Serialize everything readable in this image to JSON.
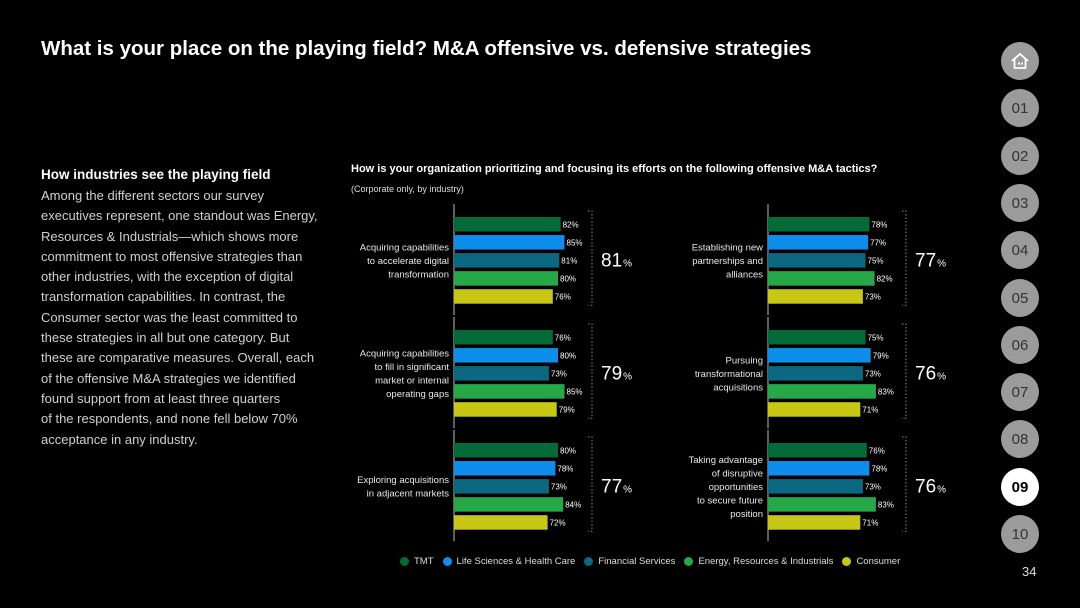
{
  "title": "What is your place on the playing field? M&A offensive vs. defensive strategies",
  "left": {
    "heading": "How industries see the playing field",
    "lines": [
      "Among the different sectors our survey",
      "executives represent, one standout was Energy,",
      "Resources & Industrials—which shows more",
      "commitment to most offensive strategies than",
      "other industries, with the exception of digital",
      "transformation capabilities. In contrast, the",
      "Consumer sector was the least committed to",
      "these strategies in all but one category. But",
      "these are comparative measures. Overall, each",
      "of the offensive M&A strategies we identified",
      "found support from at least three quarters",
      "of the respondents, and none fell below 70%",
      "acceptance in any industry."
    ]
  },
  "nav": {
    "home_icon": "house-icon",
    "items": [
      "01",
      "02",
      "03",
      "04",
      "05",
      "06",
      "07",
      "08",
      "09",
      "10"
    ],
    "active": "09"
  },
  "page_number": "34",
  "colors": {
    "TMT": "#046a38",
    "Life Sciences & Health Care": "#0d8eea",
    "Financial Services": "#0b6880",
    "Energy, Resources & Industrials": "#26a849",
    "Consumer": "#c8c814"
  },
  "chart_data": {
    "type": "bar",
    "orientation": "horizontal",
    "title": "How is your organization prioritizing and focusing its efforts on the following offensive M&A tactics?",
    "subtitle": "(Corporate only, by industry)",
    "series_names": [
      "TMT",
      "Life Sciences & Health Care",
      "Financial Services",
      "Energy, Resources & Industrials",
      "Consumer"
    ],
    "groups": [
      {
        "label": [
          "Acquiring capabilities",
          "to accelerate digital",
          "transformation"
        ],
        "values": [
          82,
          85,
          81,
          80,
          76
        ],
        "total": "81"
      },
      {
        "label": [
          "Acquiring capabilities",
          "to fill in significant",
          "market or internal",
          "operating gaps"
        ],
        "values": [
          76,
          80,
          73,
          85,
          79
        ],
        "total": "79"
      },
      {
        "label": [
          "Exploring acquisitions",
          "in adjacent markets"
        ],
        "values": [
          80,
          78,
          73,
          84,
          72
        ],
        "total": "77"
      },
      {
        "label": [
          "Establishing new",
          "partnerships and",
          "alliances"
        ],
        "values": [
          78,
          77,
          75,
          82,
          73
        ],
        "total": "77"
      },
      {
        "label": [
          "Pursuing",
          "transformational",
          "acquisitions"
        ],
        "values": [
          75,
          79,
          73,
          83,
          71
        ],
        "total": "76"
      },
      {
        "label": [
          "Taking advantage",
          "of disruptive",
          "opportunities",
          "to secure future",
          "position"
        ],
        "values": [
          76,
          78,
          73,
          83,
          71
        ],
        "total": "76"
      }
    ],
    "value_suffix": "%"
  }
}
